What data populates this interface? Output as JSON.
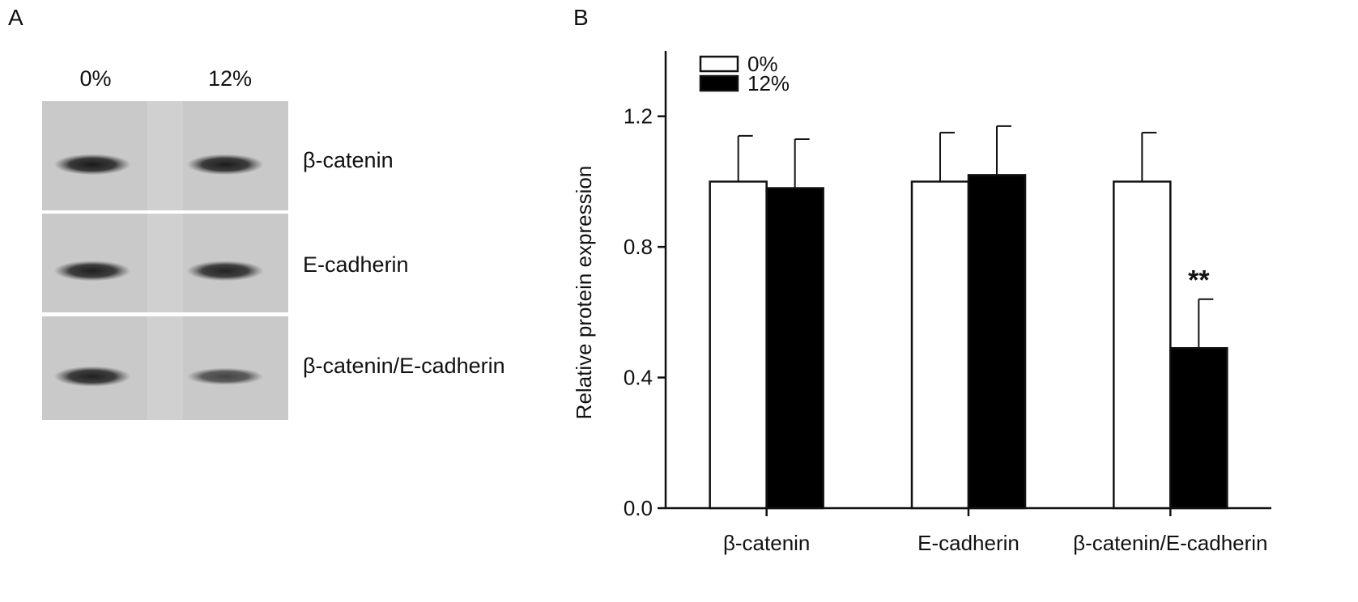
{
  "panel_a": {
    "letter": "A",
    "lanes": [
      "0%",
      "12%"
    ],
    "blots": [
      {
        "label": "β-catenin",
        "band_intensity": [
          1.0,
          0.98
        ]
      },
      {
        "label": "E-cadherin",
        "band_intensity": [
          0.95,
          0.92
        ]
      },
      {
        "label": "β-catenin/E-cadherin",
        "band_intensity": [
          0.95,
          0.6
        ]
      }
    ]
  },
  "panel_b": {
    "letter": "B"
  },
  "chart_data": {
    "type": "bar",
    "categories": [
      "β-catenin",
      "E-cadherin",
      "β-catenin/E-cadherin"
    ],
    "series": [
      {
        "name": "0%",
        "values": [
          1.0,
          1.0,
          1.0
        ],
        "errors": [
          0.14,
          0.15,
          0.15
        ],
        "color": "#ffffff"
      },
      {
        "name": "12%",
        "values": [
          0.98,
          1.02,
          0.49
        ],
        "errors": [
          0.15,
          0.15,
          0.15
        ],
        "color": "#000000"
      }
    ],
    "annotations": [
      {
        "category_index": 2,
        "series_index": 1,
        "text": "**"
      }
    ],
    "ylabel": "Relative protein expression",
    "xlabel": "",
    "ylim": [
      0,
      1.4
    ],
    "yticks": [
      "0.0",
      "0.4",
      "0.8",
      "1.2"
    ],
    "legend_position": "top-left",
    "grid": false
  }
}
